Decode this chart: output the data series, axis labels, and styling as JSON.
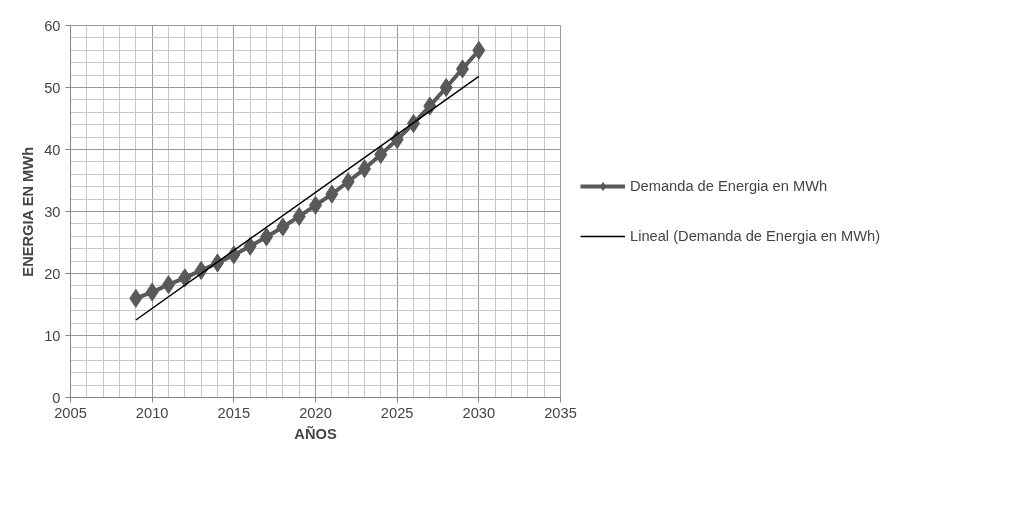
{
  "chart_data": {
    "type": "line",
    "xlabel": "AÑOS",
    "ylabel": "ENERGIA EN MWh",
    "x": [
      2009,
      2010,
      2011,
      2012,
      2013,
      2014,
      2015,
      2016,
      2017,
      2018,
      2019,
      2020,
      2021,
      2022,
      2023,
      2024,
      2025,
      2026,
      2027,
      2028,
      2029,
      2030
    ],
    "series": [
      {
        "name": "Demanda de Energia en MWh",
        "color": "#595959",
        "marker": "diamond",
        "line_style": "solid",
        "values": [
          16,
          17,
          18.2,
          19.3,
          20.5,
          21.7,
          23,
          24.4,
          25.9,
          27.5,
          29.2,
          31,
          32.8,
          34.8,
          36.9,
          39.2,
          41.6,
          44.2,
          47,
          50,
          53,
          56
        ]
      },
      {
        "name": "Lineal (Demanda de Energia en MWh)",
        "color": "#000000",
        "marker": "none",
        "line_style": "solid",
        "x": [
          2009,
          2030
        ],
        "values": [
          12.5,
          51.8
        ]
      }
    ],
    "xlim": [
      2005,
      2035
    ],
    "ylim": [
      0,
      60
    ],
    "xticks": [
      2005,
      2010,
      2015,
      2020,
      2025,
      2030,
      2035
    ],
    "yticks": [
      0,
      10,
      20,
      30,
      40,
      50,
      60
    ],
    "grid": true,
    "legend": "right"
  }
}
